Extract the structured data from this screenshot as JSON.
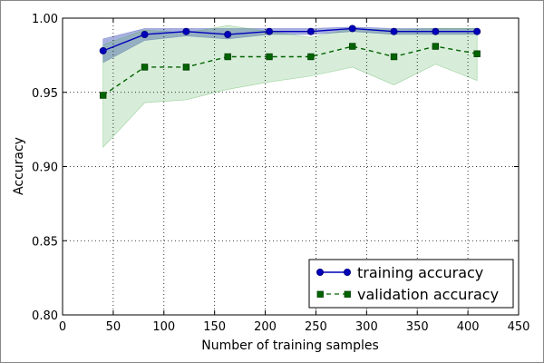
{
  "chart_data": {
    "type": "line",
    "title": "",
    "xlabel": "Number of training samples",
    "ylabel": "Accuracy",
    "xlim": [
      0,
      450
    ],
    "ylim": [
      0.8,
      1.0
    ],
    "xticks": [
      0,
      50,
      100,
      150,
      200,
      250,
      300,
      350,
      400,
      450
    ],
    "yticks": [
      0.8,
      0.85,
      0.9,
      0.95,
      1.0
    ],
    "xtick_labels": [
      "0",
      "50",
      "100",
      "150",
      "200",
      "250",
      "300",
      "350",
      "400",
      "450"
    ],
    "ytick_labels": [
      "0.80",
      "0.85",
      "0.90",
      "0.95",
      "1.00"
    ],
    "grid": true,
    "legend_position": "lower-right",
    "x": [
      40,
      81,
      122,
      163,
      204,
      245,
      286,
      327,
      368,
      409
    ],
    "series": [
      {
        "name": "training accuracy",
        "color": "#0000bb",
        "band_color": "#3d4fb8",
        "marker": "circle",
        "linestyle": "solid",
        "values": [
          0.978,
          0.989,
          0.991,
          0.989,
          0.991,
          0.991,
          0.993,
          0.991,
          0.991,
          0.991
        ],
        "band_upper": [
          0.986,
          0.993,
          0.993,
          0.993,
          0.993,
          0.993,
          0.994,
          0.993,
          0.993,
          0.993
        ],
        "band_lower": [
          0.97,
          0.985,
          0.988,
          0.986,
          0.989,
          0.989,
          0.991,
          0.989,
          0.989,
          0.989
        ]
      },
      {
        "name": "validation accuracy",
        "color": "#006400",
        "band_color": "#4caf50",
        "marker": "square",
        "linestyle": "dashed",
        "values": [
          0.948,
          0.967,
          0.967,
          0.974,
          0.974,
          0.974,
          0.981,
          0.974,
          0.981,
          0.976
        ],
        "band_upper": [
          0.982,
          0.992,
          0.99,
          0.995,
          0.991,
          0.987,
          0.993,
          0.992,
          0.993,
          0.993
        ],
        "band_lower": [
          0.913,
          0.943,
          0.945,
          0.952,
          0.957,
          0.961,
          0.967,
          0.955,
          0.969,
          0.958
        ]
      }
    ]
  }
}
